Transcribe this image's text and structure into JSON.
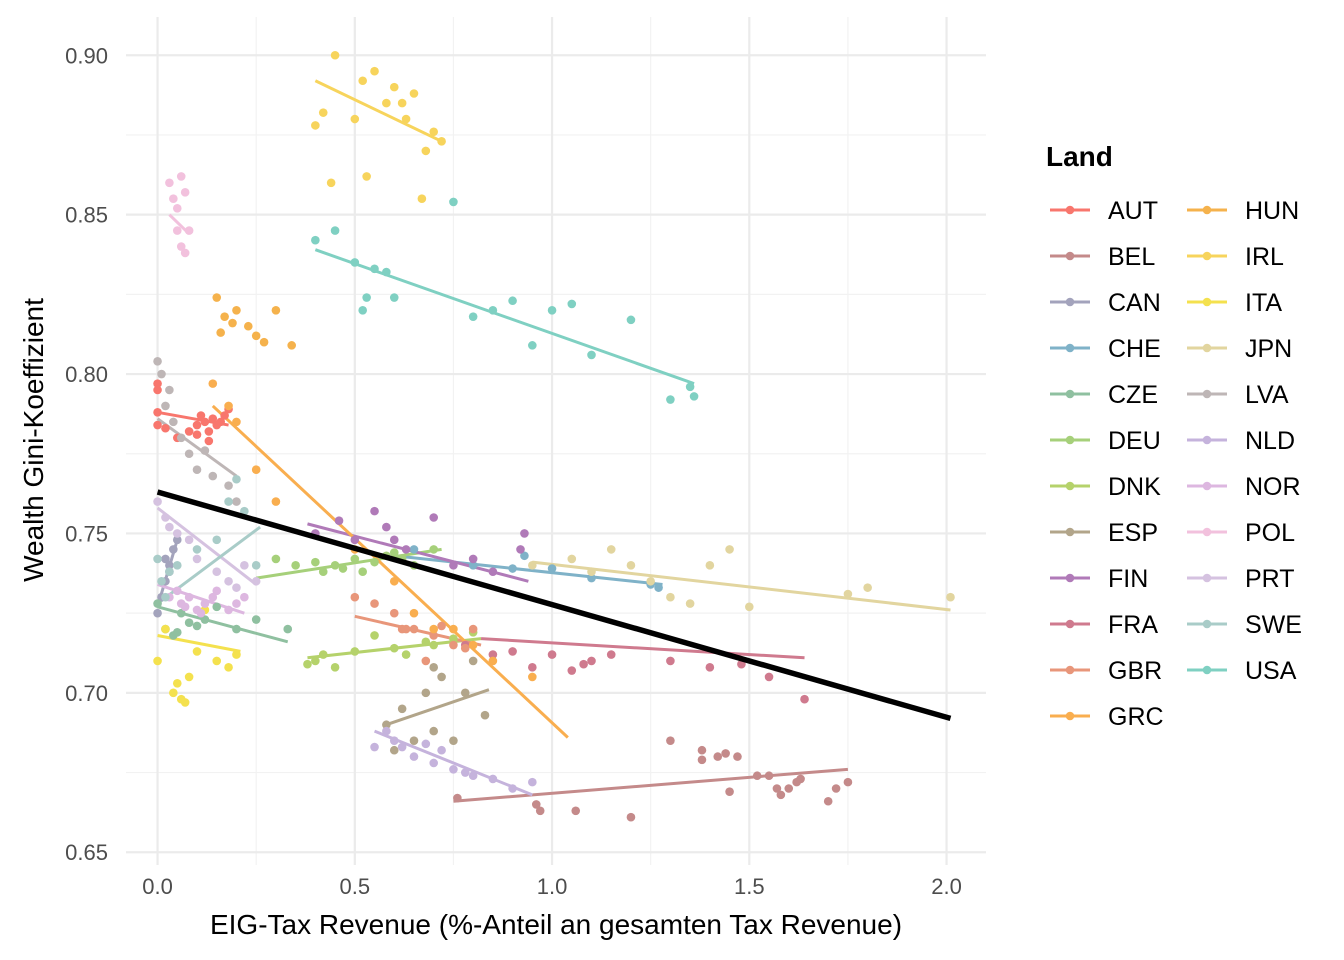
{
  "chart_data": {
    "type": "scatter",
    "title": "",
    "xlabel": "EIG-Tax Revenue (%-Anteil an gesamten Tax Revenue)",
    "ylabel": "Wealth Gini-Koeffizient",
    "xlim": [
      -0.08,
      2.1
    ],
    "ylim": [
      0.646,
      0.912
    ],
    "x_ticks": [
      0.0,
      0.5,
      1.0,
      1.5,
      2.0
    ],
    "x_tick_labels": [
      "0.0",
      "0.5",
      "1.0",
      "1.5",
      "2.0"
    ],
    "y_ticks": [
      0.65,
      0.7,
      0.75,
      0.8,
      0.85,
      0.9
    ],
    "y_tick_labels": [
      "0.65",
      "0.70",
      "0.75",
      "0.80",
      "0.85",
      "0.90"
    ],
    "grid": true,
    "legend": {
      "title": "Land",
      "position": "right",
      "columns": 2
    },
    "overall_trend": {
      "x": [
        0.0,
        2.01
      ],
      "y": [
        0.763,
        0.692
      ],
      "color": "#000000"
    },
    "series": [
      {
        "name": "AUT",
        "color": "#F8766D",
        "x": [
          0.0,
          0.0,
          0.0,
          0.0,
          0.02,
          0.05,
          0.08,
          0.1,
          0.11,
          0.12,
          0.13,
          0.14,
          0.15,
          0.17,
          0.1,
          0.13,
          0.16,
          0.18
        ],
        "y": [
          0.797,
          0.795,
          0.788,
          0.784,
          0.783,
          0.78,
          0.782,
          0.784,
          0.787,
          0.785,
          0.782,
          0.786,
          0.784,
          0.787,
          0.781,
          0.779,
          0.785,
          0.789
        ],
        "trend": {
          "x": [
            0.0,
            0.18
          ],
          "y": [
            0.788,
            0.784
          ]
        }
      },
      {
        "name": "BEL",
        "color": "#C48A8A",
        "x": [
          0.76,
          0.96,
          0.97,
          1.06,
          1.2,
          1.3,
          1.38,
          1.38,
          1.42,
          1.44,
          1.47,
          1.52,
          1.55,
          1.57,
          1.58,
          1.6,
          1.62,
          1.63,
          1.7,
          1.72,
          1.75,
          1.45
        ],
        "y": [
          0.667,
          0.665,
          0.663,
          0.663,
          0.661,
          0.685,
          0.682,
          0.679,
          0.68,
          0.681,
          0.68,
          0.674,
          0.674,
          0.67,
          0.668,
          0.67,
          0.672,
          0.673,
          0.666,
          0.67,
          0.672,
          0.669
        ],
        "trend": {
          "x": [
            0.75,
            1.75
          ],
          "y": [
            0.666,
            0.676
          ]
        }
      },
      {
        "name": "CAN",
        "color": "#A3A3BC",
        "x": [
          0.0,
          0.01,
          0.02,
          0.03,
          0.04,
          0.05,
          0.03,
          0.02
        ],
        "y": [
          0.725,
          0.73,
          0.735,
          0.74,
          0.745,
          0.748,
          0.738,
          0.742
        ],
        "trend": {
          "x": [
            0.0,
            0.05
          ],
          "y": [
            0.727,
            0.748
          ]
        }
      },
      {
        "name": "CHE",
        "color": "#7FB2C8",
        "x": [
          0.65,
          0.8,
          0.9,
          0.93,
          1.0,
          1.1,
          1.25,
          1.27
        ],
        "y": [
          0.745,
          0.74,
          0.739,
          0.743,
          0.739,
          0.736,
          0.734,
          0.733
        ],
        "trend": {
          "x": [
            0.6,
            1.28
          ],
          "y": [
            0.743,
            0.734
          ]
        }
      },
      {
        "name": "CZE",
        "color": "#8FC0A0",
        "x": [
          0.0,
          0.02,
          0.04,
          0.06,
          0.08,
          0.1,
          0.12,
          0.15,
          0.2,
          0.25,
          0.33,
          0.05
        ],
        "y": [
          0.728,
          0.72,
          0.718,
          0.725,
          0.722,
          0.721,
          0.723,
          0.727,
          0.72,
          0.723,
          0.72,
          0.719
        ],
        "trend": {
          "x": [
            0.0,
            0.33
          ],
          "y": [
            0.727,
            0.716
          ]
        }
      },
      {
        "name": "DEU",
        "color": "#A6D07A",
        "x": [
          0.3,
          0.35,
          0.4,
          0.42,
          0.45,
          0.5,
          0.55,
          0.58,
          0.6,
          0.62,
          0.65,
          0.7,
          0.47,
          0.52
        ],
        "y": [
          0.742,
          0.74,
          0.741,
          0.738,
          0.74,
          0.742,
          0.741,
          0.743,
          0.744,
          0.742,
          0.74,
          0.745,
          0.739,
          0.738
        ],
        "trend": {
          "x": [
            0.25,
            0.72
          ],
          "y": [
            0.736,
            0.745
          ]
        }
      },
      {
        "name": "DNK",
        "color": "#B5D26B",
        "x": [
          0.38,
          0.4,
          0.42,
          0.45,
          0.5,
          0.55,
          0.6,
          0.63,
          0.68,
          0.7,
          0.75,
          0.8
        ],
        "y": [
          0.709,
          0.71,
          0.712,
          0.708,
          0.713,
          0.718,
          0.714,
          0.712,
          0.716,
          0.715,
          0.717,
          0.719
        ],
        "trend": {
          "x": [
            0.38,
            0.82
          ],
          "y": [
            0.711,
            0.717
          ]
        }
      },
      {
        "name": "ESP",
        "color": "#B2A58A",
        "x": [
          0.58,
          0.6,
          0.65,
          0.68,
          0.7,
          0.72,
          0.75,
          0.78,
          0.8,
          0.83,
          0.7,
          0.62
        ],
        "y": [
          0.69,
          0.682,
          0.685,
          0.7,
          0.708,
          0.705,
          0.685,
          0.7,
          0.71,
          0.693,
          0.688,
          0.695
        ],
        "trend": {
          "x": [
            0.58,
            0.84
          ],
          "y": [
            0.69,
            0.701
          ]
        }
      },
      {
        "name": "FIN",
        "color": "#B07AB8",
        "x": [
          0.4,
          0.46,
          0.5,
          0.55,
          0.58,
          0.6,
          0.63,
          0.7,
          0.75,
          0.8,
          0.85,
          0.93,
          0.92
        ],
        "y": [
          0.75,
          0.754,
          0.748,
          0.757,
          0.752,
          0.748,
          0.745,
          0.755,
          0.74,
          0.742,
          0.738,
          0.75,
          0.745
        ],
        "trend": {
          "x": [
            0.38,
            0.94
          ],
          "y": [
            0.753,
            0.735
          ]
        }
      },
      {
        "name": "FRA",
        "color": "#CF7A8E",
        "x": [
          0.78,
          0.85,
          0.9,
          0.95,
          1.0,
          1.05,
          1.08,
          1.1,
          1.15,
          1.3,
          1.4,
          1.48,
          1.55,
          1.64
        ],
        "y": [
          0.715,
          0.712,
          0.713,
          0.708,
          0.712,
          0.707,
          0.709,
          0.71,
          0.712,
          0.71,
          0.708,
          0.709,
          0.705,
          0.698
        ],
        "trend": {
          "x": [
            0.82,
            1.64
          ],
          "y": [
            0.717,
            0.711
          ]
        }
      },
      {
        "name": "GBR",
        "color": "#E8967A",
        "x": [
          0.5,
          0.55,
          0.6,
          0.62,
          0.65,
          0.7,
          0.72,
          0.75,
          0.78,
          0.8,
          0.63,
          0.68
        ],
        "y": [
          0.73,
          0.728,
          0.725,
          0.72,
          0.72,
          0.718,
          0.721,
          0.715,
          0.714,
          0.72,
          0.72,
          0.71
        ],
        "trend": {
          "x": [
            0.5,
            0.82
          ],
          "y": [
            0.724,
            0.715
          ]
        }
      },
      {
        "name": "GRC",
        "color": "#F9AE4F",
        "x": [
          0.14,
          0.18,
          0.2,
          0.25,
          0.3,
          0.5,
          0.6,
          0.75,
          0.8,
          0.85,
          0.95,
          0.65,
          0.7
        ],
        "y": [
          0.797,
          0.79,
          0.785,
          0.77,
          0.76,
          0.745,
          0.735,
          0.72,
          0.715,
          0.71,
          0.705,
          0.725,
          0.72
        ],
        "trend": {
          "x": [
            0.14,
            1.04
          ],
          "y": [
            0.79,
            0.686
          ]
        }
      },
      {
        "name": "HUN",
        "color": "#F5B24C",
        "x": [
          0.15,
          0.17,
          0.2,
          0.23,
          0.25,
          0.27,
          0.3,
          0.34,
          0.16,
          0.19
        ],
        "y": [
          0.824,
          0.818,
          0.82,
          0.815,
          0.812,
          0.81,
          0.82,
          0.809,
          0.813,
          0.816
        ],
        "trend": null
      },
      {
        "name": "IRL",
        "color": "#F7D45C",
        "x": [
          0.4,
          0.42,
          0.45,
          0.5,
          0.52,
          0.55,
          0.58,
          0.6,
          0.62,
          0.65,
          0.68,
          0.7,
          0.72,
          0.44,
          0.53,
          0.63,
          0.67
        ],
        "y": [
          0.878,
          0.882,
          0.9,
          0.88,
          0.892,
          0.895,
          0.885,
          0.89,
          0.885,
          0.888,
          0.87,
          0.876,
          0.873,
          0.86,
          0.862,
          0.88,
          0.855
        ],
        "trend": {
          "x": [
            0.4,
            0.72
          ],
          "y": [
            0.892,
            0.873
          ]
        }
      },
      {
        "name": "ITA",
        "color": "#F4E14E",
        "x": [
          0.0,
          0.02,
          0.04,
          0.06,
          0.08,
          0.1,
          0.12,
          0.15,
          0.18,
          0.2,
          0.05,
          0.07
        ],
        "y": [
          0.71,
          0.72,
          0.7,
          0.698,
          0.705,
          0.713,
          0.726,
          0.71,
          0.708,
          0.712,
          0.703,
          0.697
        ],
        "trend": {
          "x": [
            0.0,
            0.21
          ],
          "y": [
            0.718,
            0.713
          ]
        }
      },
      {
        "name": "JPN",
        "color": "#E2D59F",
        "x": [
          0.95,
          1.05,
          1.1,
          1.15,
          1.2,
          1.25,
          1.3,
          1.35,
          1.4,
          1.45,
          1.5,
          1.75,
          1.8,
          2.01
        ],
        "y": [
          0.74,
          0.742,
          0.738,
          0.745,
          0.74,
          0.735,
          0.73,
          0.728,
          0.74,
          0.745,
          0.727,
          0.731,
          0.733,
          0.73
        ],
        "trend": {
          "x": [
            0.95,
            2.01
          ],
          "y": [
            0.741,
            0.726
          ]
        }
      },
      {
        "name": "LVA",
        "color": "#BEB6B6",
        "x": [
          0.0,
          0.01,
          0.02,
          0.04,
          0.06,
          0.08,
          0.1,
          0.12,
          0.14,
          0.18,
          0.2,
          0.03
        ],
        "y": [
          0.804,
          0.8,
          0.79,
          0.785,
          0.78,
          0.775,
          0.77,
          0.776,
          0.768,
          0.765,
          0.76,
          0.795
        ],
        "trend": {
          "x": [
            0.0,
            0.2
          ],
          "y": [
            0.786,
            0.768
          ]
        }
      },
      {
        "name": "NLD",
        "color": "#C5B3DC",
        "x": [
          0.55,
          0.58,
          0.6,
          0.62,
          0.65,
          0.68,
          0.7,
          0.72,
          0.75,
          0.78,
          0.8,
          0.85,
          0.9,
          0.95
        ],
        "y": [
          0.683,
          0.688,
          0.685,
          0.683,
          0.68,
          0.684,
          0.678,
          0.682,
          0.676,
          0.675,
          0.674,
          0.673,
          0.67,
          0.672
        ],
        "trend": {
          "x": [
            0.55,
            0.95
          ],
          "y": [
            0.688,
            0.668
          ]
        }
      },
      {
        "name": "NOR",
        "color": "#DDB7E0",
        "x": [
          0.03,
          0.05,
          0.06,
          0.08,
          0.1,
          0.12,
          0.14,
          0.15,
          0.18,
          0.2,
          0.22,
          0.07,
          0.11
        ],
        "y": [
          0.73,
          0.732,
          0.728,
          0.73,
          0.726,
          0.728,
          0.73,
          0.732,
          0.726,
          0.728,
          0.73,
          0.727,
          0.725
        ],
        "trend": {
          "x": [
            0.0,
            0.22
          ],
          "y": [
            0.734,
            0.725
          ]
        }
      },
      {
        "name": "POL",
        "color": "#F2C1DD",
        "x": [
          0.03,
          0.04,
          0.05,
          0.06,
          0.07,
          0.08,
          0.05,
          0.06,
          0.07
        ],
        "y": [
          0.86,
          0.855,
          0.845,
          0.84,
          0.838,
          0.845,
          0.852,
          0.862,
          0.857
        ],
        "trend": {
          "x": [
            0.03,
            0.08
          ],
          "y": [
            0.85,
            0.844
          ]
        }
      },
      {
        "name": "PRT",
        "color": "#D5C2E0",
        "x": [
          0.0,
          0.02,
          0.05,
          0.08,
          0.1,
          0.15,
          0.18,
          0.2,
          0.22,
          0.25,
          0.03
        ],
        "y": [
          0.76,
          0.755,
          0.75,
          0.748,
          0.742,
          0.738,
          0.735,
          0.733,
          0.74,
          0.735,
          0.752
        ],
        "trend": {
          "x": [
            0.0,
            0.25
          ],
          "y": [
            0.758,
            0.734
          ]
        }
      },
      {
        "name": "SWE",
        "color": "#A9CCC8",
        "x": [
          0.0,
          0.01,
          0.02,
          0.05,
          0.1,
          0.15,
          0.18,
          0.2,
          0.22,
          0.25,
          0.03
        ],
        "y": [
          0.742,
          0.735,
          0.73,
          0.74,
          0.745,
          0.748,
          0.76,
          0.767,
          0.757,
          0.74,
          0.738
        ],
        "trend": {
          "x": [
            0.0,
            0.26
          ],
          "y": [
            0.728,
            0.752
          ]
        }
      },
      {
        "name": "USA",
        "color": "#7FD0C2",
        "x": [
          0.4,
          0.45,
          0.5,
          0.52,
          0.55,
          0.58,
          0.6,
          0.75,
          0.8,
          0.85,
          0.9,
          0.95,
          1.0,
          1.05,
          1.1,
          1.2,
          1.3,
          1.35,
          1.36,
          0.53
        ],
        "y": [
          0.842,
          0.845,
          0.835,
          0.82,
          0.833,
          0.832,
          0.824,
          0.854,
          0.818,
          0.82,
          0.823,
          0.809,
          0.82,
          0.822,
          0.806,
          0.817,
          0.792,
          0.796,
          0.793,
          0.824
        ],
        "trend": {
          "x": [
            0.4,
            1.36
          ],
          "y": [
            0.839,
            0.797
          ]
        }
      }
    ]
  }
}
